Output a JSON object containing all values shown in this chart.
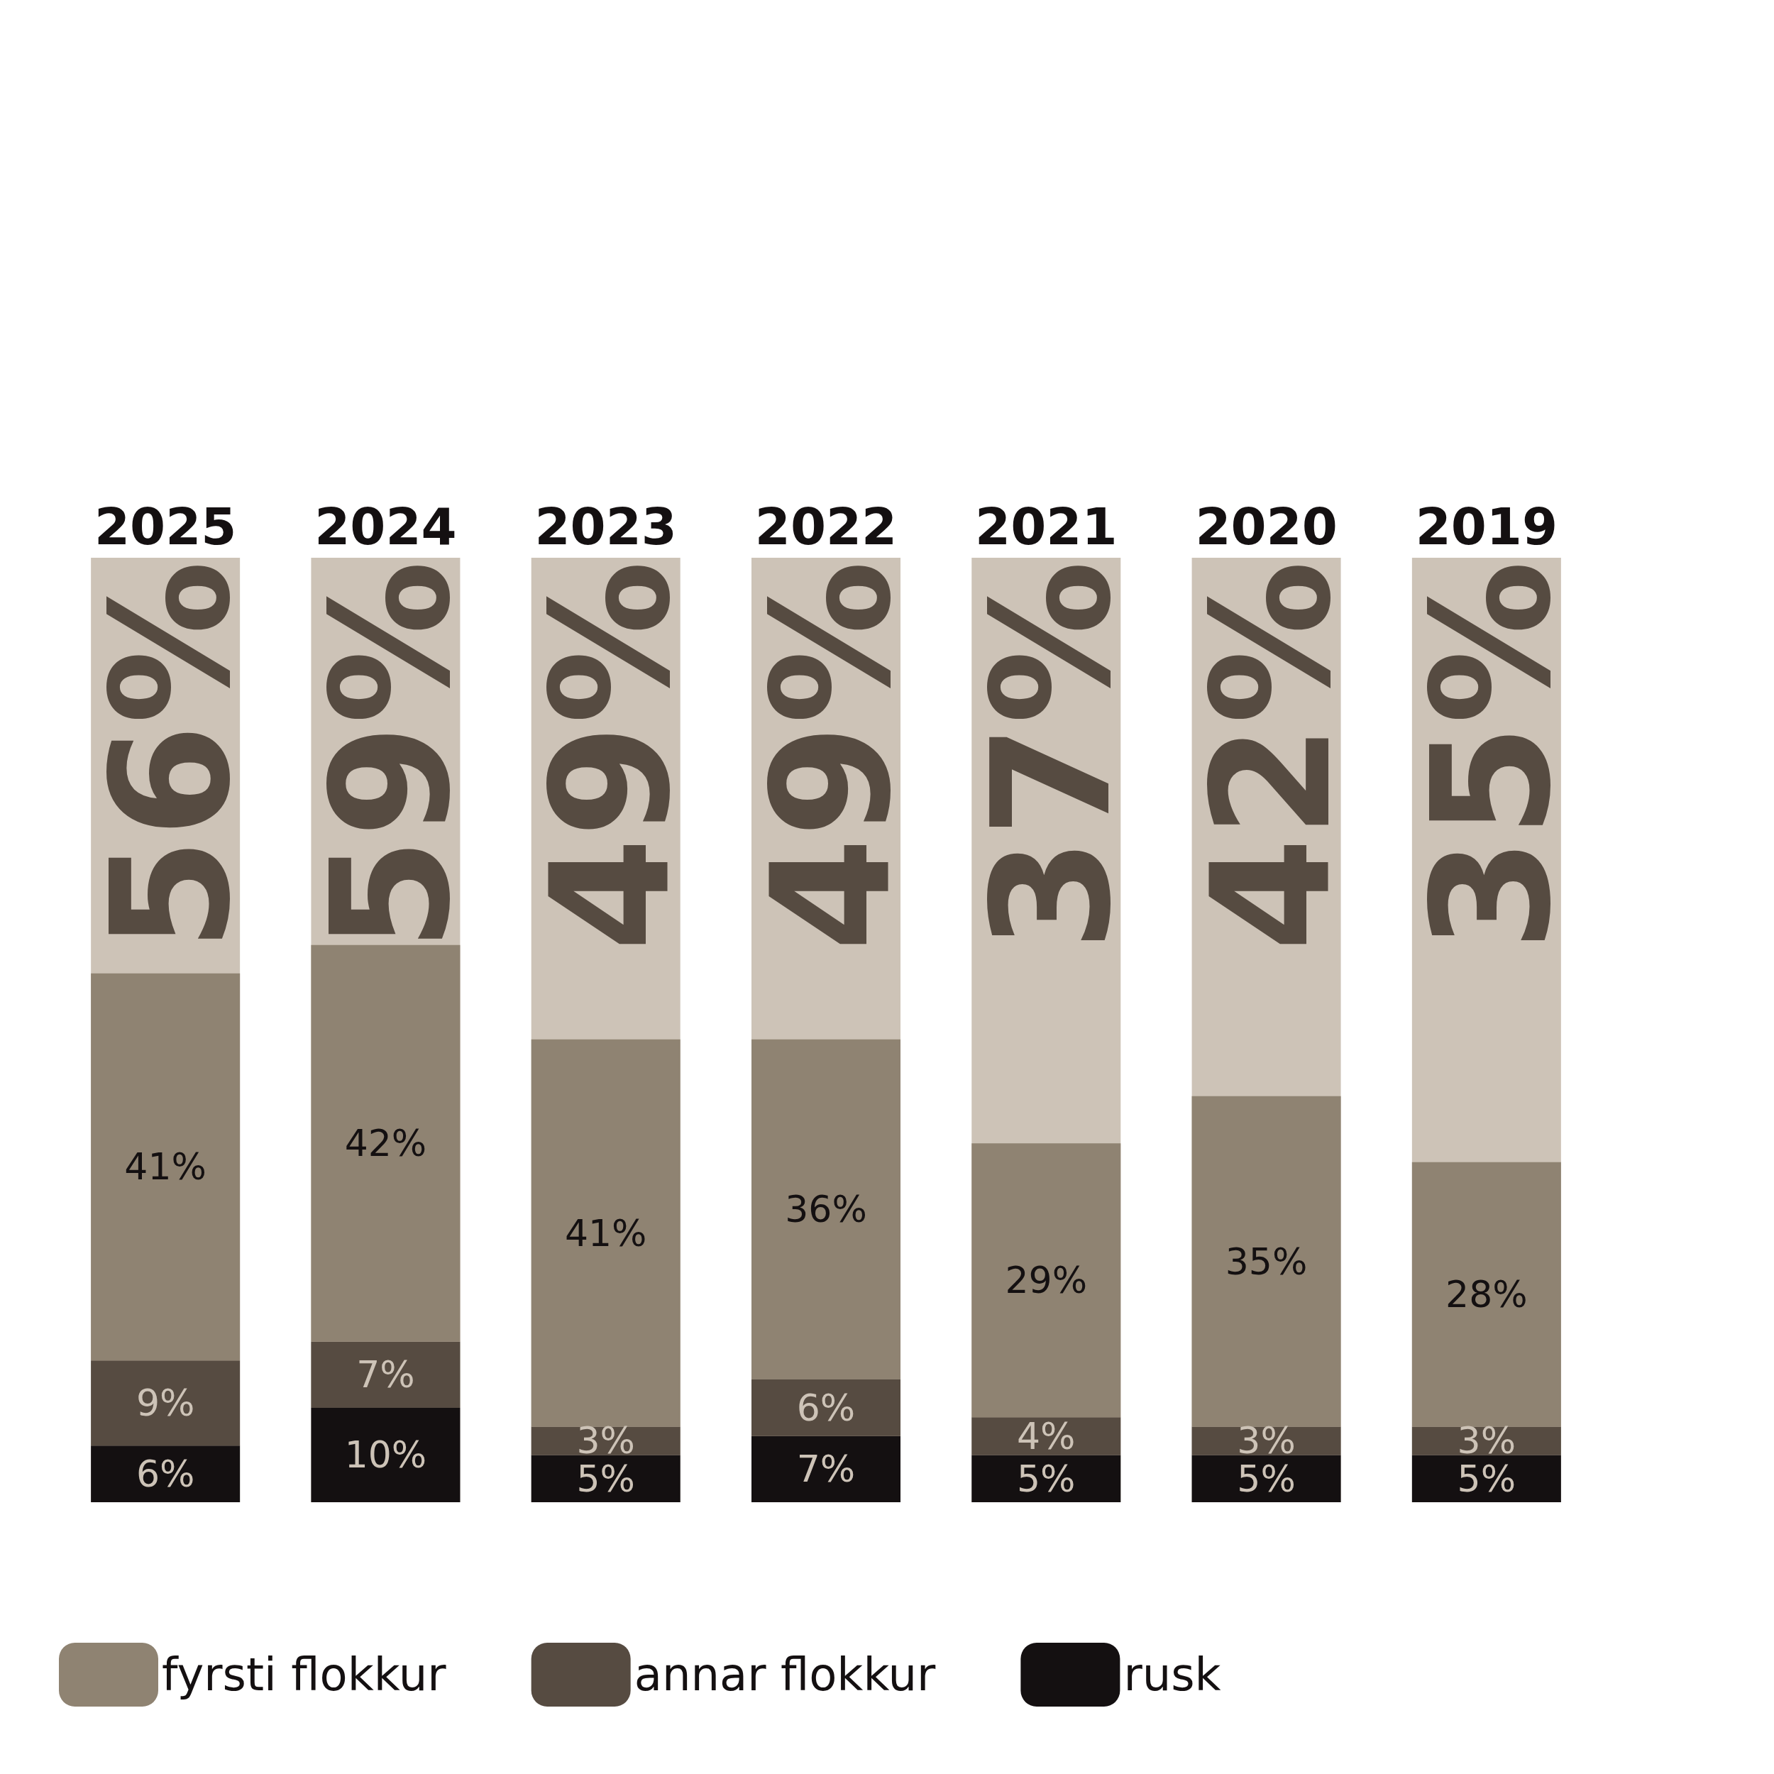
{
  "chart_data": {
    "type": "bar",
    "stacked": true,
    "legend": "bottom",
    "ylim": [
      0,
      100
    ],
    "tick_labels": "x",
    "categories": [
      "2025",
      "2024",
      "2023",
      "2022",
      "2021",
      "2020",
      "2019"
    ],
    "series": [
      {
        "name": "rusk",
        "color": "#141011",
        "values": [
          6,
          10,
          5,
          7,
          5,
          5,
          5
        ],
        "value_labels": [
          "6%",
          "10%",
          "5%",
          "7%",
          "5%",
          "5%",
          "5%"
        ]
      },
      {
        "name": "annar flokkur",
        "color": "#564b41",
        "values": [
          9,
          7,
          3,
          6,
          4,
          3,
          3
        ],
        "value_labels": [
          "9%",
          "7%",
          "3%",
          "6%",
          "4%",
          "3%",
          "3%"
        ]
      },
      {
        "name": "fyrsti flokkur",
        "color": "#8f8372",
        "values": [
          41,
          42,
          41,
          36,
          29,
          35,
          28
        ],
        "value_labels": [
          "41%",
          "42%",
          "41%",
          "36%",
          "29%",
          "35%",
          "28%"
        ]
      }
    ],
    "totals": [
      "56%",
      "59%",
      "49%",
      "49%",
      "37%",
      "42%",
      "35%"
    ]
  }
}
